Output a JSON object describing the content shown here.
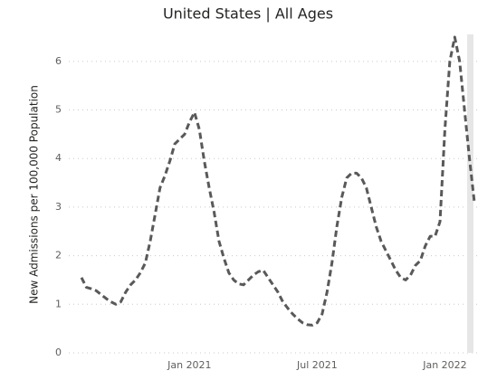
{
  "chart_data": {
    "type": "line",
    "title": "United States | All Ages",
    "y_label": "New Admissions per 100,000 Population",
    "categories": [
      null,
      null,
      null,
      null,
      null,
      null,
      null,
      null,
      null,
      null,
      null,
      null,
      null,
      null,
      null,
      null,
      null,
      null,
      null,
      null,
      null,
      null,
      "Jan 2021",
      null,
      null,
      null,
      null,
      null,
      null,
      null,
      null,
      null,
      null,
      null,
      null,
      null,
      null,
      null,
      null,
      null,
      null,
      null,
      null,
      null,
      null,
      null,
      null,
      null,
      "Jul 2021",
      null,
      null,
      null,
      null,
      null,
      null,
      null,
      null,
      null,
      null,
      null,
      null,
      null,
      null,
      null,
      null,
      null,
      null,
      null,
      null,
      null,
      null,
      null,
      null,
      null,
      "Jan 2022",
      null,
      null,
      null,
      null,
      null,
      null
    ],
    "values": [
      1.55,
      1.35,
      1.32,
      1.28,
      1.2,
      1.12,
      1.05,
      1.0,
      1.05,
      1.25,
      1.4,
      1.5,
      1.65,
      1.85,
      2.3,
      2.85,
      3.4,
      3.65,
      3.95,
      4.3,
      4.4,
      4.5,
      4.75,
      4.95,
      4.6,
      3.95,
      3.4,
      2.9,
      2.3,
      1.95,
      1.65,
      1.5,
      1.42,
      1.4,
      1.5,
      1.6,
      1.67,
      1.7,
      1.55,
      1.4,
      1.25,
      1.05,
      0.92,
      0.8,
      0.7,
      0.62,
      0.58,
      0.57,
      0.62,
      0.8,
      1.25,
      1.85,
      2.6,
      3.2,
      3.6,
      3.7,
      3.7,
      3.6,
      3.4,
      3.0,
      2.6,
      2.3,
      2.1,
      1.9,
      1.7,
      1.55,
      1.5,
      1.6,
      1.8,
      1.9,
      2.2,
      2.4,
      2.4,
      2.7,
      4.6,
      6.0,
      6.5,
      6.0,
      5.0,
      4.0,
      3.1
    ],
    "color": "#595959",
    "line_style": "dashed",
    "ylim": [
      0,
      6.5
    ],
    "yticks": [
      0,
      1,
      2,
      3,
      4,
      5,
      6
    ],
    "grid": true
  }
}
